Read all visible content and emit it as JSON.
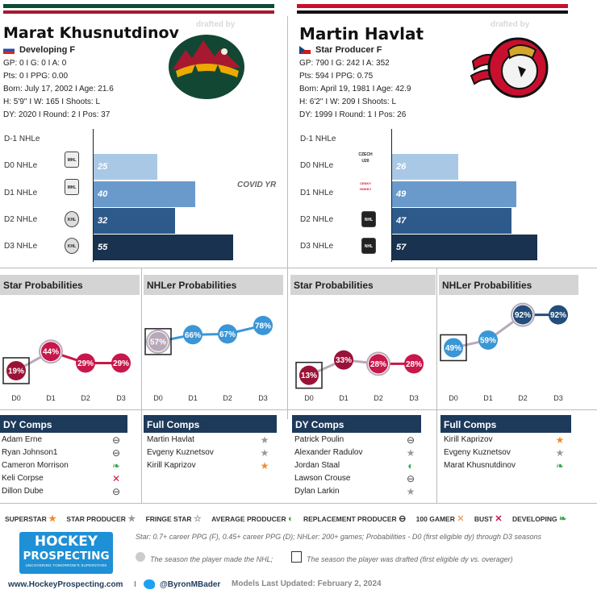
{
  "drafted_by": "drafted by",
  "left": {
    "name": "Marat Khusnutdinov",
    "status": "Developing   F",
    "stats": [
      "GP: 0 I G: 0 I A: 0",
      "Pts: 0 I PPG: 0.00",
      "Born: July 17, 2002 I Age: 21.6",
      "H: 5'9'' I W: 165 I Shoots: L",
      "DY: 2020 I Round: 2 I Pos: 37"
    ],
    "levels": [
      "D-1 NHLe",
      "D0 NHLe",
      "D1 NHLe",
      "D2 NHLe",
      "D3 NHLe"
    ],
    "leagues": [
      "MHL",
      "MHL",
      "KHL",
      "KHL"
    ],
    "covid": "COVID YR"
  },
  "right": {
    "name": "Martin Havlat",
    "status": "Star Producer   F",
    "stats": [
      "GP: 790 I G: 242 I A: 352",
      "Pts: 594 I PPG: 0.75",
      "Born: April 19, 1981 I Age: 42.9",
      "H: 6'2'' I W: 209 I Shoots: L",
      "DY: 1999 I Round: 1 I Pos: 26"
    ],
    "levels": [
      "D-1 NHLe",
      "D0 NHLe",
      "D1 NHLe",
      "D2 NHLe",
      "D3 NHLe"
    ],
    "leagues": [
      "CZECH U20",
      "CESKY HOKEJ",
      "NHL",
      "NHL"
    ]
  },
  "prob_titles": {
    "star": "Star Probabilities",
    "nhler": "NHLer Probabilities"
  },
  "comps_titles": {
    "dy": "DY Comps",
    "full": "Full Comps"
  },
  "chart_data": [
    {
      "type": "bar",
      "title": "Marat Khusnutdinov NHLe",
      "categories": [
        "D-1 NHLe",
        "D0 NHLe",
        "D1 NHLe",
        "D2 NHLe",
        "D3 NHLe"
      ],
      "values": [
        null,
        25,
        40,
        32,
        55
      ],
      "xlim": [
        0,
        60
      ],
      "colors": [
        "#a9c8e5",
        "#a9c8e5",
        "#6a9acb",
        "#2d5a8a",
        "#18324f"
      ]
    },
    {
      "type": "bar",
      "title": "Martin Havlat NHLe",
      "categories": [
        "D-1 NHLe",
        "D0 NHLe",
        "D1 NHLe",
        "D2 NHLe",
        "D3 NHLe"
      ],
      "values": [
        null,
        26,
        49,
        47,
        57
      ],
      "xlim": [
        0,
        60
      ],
      "colors": [
        "#a9c8e5",
        "#a9c8e5",
        "#6a9acb",
        "#2d5a8a",
        "#18324f"
      ]
    },
    {
      "type": "line",
      "title": "Star Probabilities",
      "player": "Marat Khusnutdinov",
      "x": [
        "D0",
        "D1",
        "D2",
        "D3"
      ],
      "values": [
        19,
        44,
        29,
        29
      ],
      "drafted_index": 0,
      "nhl_index": 1
    },
    {
      "type": "line",
      "title": "NHLer Probabilities",
      "player": "Marat Khusnutdinov",
      "x": [
        "D0",
        "D1",
        "D2",
        "D3"
      ],
      "values": [
        57,
        66,
        67,
        78
      ],
      "drafted_index": 0,
      "nhl_index": 0
    },
    {
      "type": "line",
      "title": "Star Probabilities",
      "player": "Martin Havlat",
      "x": [
        "D0",
        "D1",
        "D2",
        "D3"
      ],
      "values": [
        13,
        33,
        28,
        28
      ],
      "drafted_index": 0,
      "nhl_index": 2
    },
    {
      "type": "line",
      "title": "NHLer Probabilities",
      "player": "Martin Havlat",
      "x": [
        "D0",
        "D1",
        "D2",
        "D3"
      ],
      "values": [
        49,
        59,
        92,
        92
      ],
      "drafted_index": 0,
      "nhl_index": 2
    }
  ],
  "comps": {
    "left_dy": [
      {
        "name": "Adam Erne",
        "icon": "replacement"
      },
      {
        "name": "Ryan Johnson1",
        "icon": "replacement"
      },
      {
        "name": "Cameron Morrison",
        "icon": "developing"
      },
      {
        "name": "Keli Corpse",
        "icon": "bust"
      },
      {
        "name": "Dillon Dube",
        "icon": "replacement"
      }
    ],
    "left_full": [
      {
        "name": "Martin Havlat",
        "icon": "star-producer"
      },
      {
        "name": "Evgeny Kuznetsov",
        "icon": "star-producer"
      },
      {
        "name": "Kirill Kaprizov",
        "icon": "superstar"
      }
    ],
    "right_dy": [
      {
        "name": "Patrick Poulin",
        "icon": "replacement"
      },
      {
        "name": "Alexander Radulov",
        "icon": "star-producer"
      },
      {
        "name": "Jordan Staal",
        "icon": "average"
      },
      {
        "name": "Lawson Crouse",
        "icon": "replacement"
      },
      {
        "name": "Dylan Larkin",
        "icon": "star-producer"
      }
    ],
    "right_full": [
      {
        "name": "Kirill Kaprizov",
        "icon": "superstar"
      },
      {
        "name": "Evgeny Kuznetsov",
        "icon": "star-producer"
      },
      {
        "name": "Marat Khusnutdinov",
        "icon": "developing"
      }
    ]
  },
  "legend": [
    "SUPERSTAR",
    "STAR PRODUCER",
    "FRINGE STAR",
    "AVERAGE PRODUCER",
    "REPLACEMENT PRODUCER",
    "100 GAMER",
    "BUST",
    "DEVELOPING"
  ],
  "footer": {
    "logo_line1": "HOCKEY",
    "logo_line2": "PROSPECTING",
    "logo_tag": "UNCOVERING TOMORROW'S SUPERSTARS",
    "definition": "Star: 0.7+ career PPG (F), 0.45+ career PPG (D); NHLer: 200+ games; Probabilities - D0 (first eligible dy) through D3 seasons",
    "nhl_note": "The season the player made the NHL;",
    "draft_note": "The season the player was drafted (first eligible dy vs. overager)",
    "website": "www.HockeyProspecting.com",
    "twitter": "@ByronMBader",
    "updated": "Models Last Updated: February 2, 2024",
    "sep": "I"
  },
  "colors": {
    "star": "#c8174a",
    "nhler": "#3a96d6",
    "nhler_dark": "#234e7b",
    "star_dark": "#9b1237",
    "grey": "#b8a9b8",
    "wild_green": "#124734",
    "sens_red": "#c8102e",
    "navy": "#1d3a5a"
  }
}
